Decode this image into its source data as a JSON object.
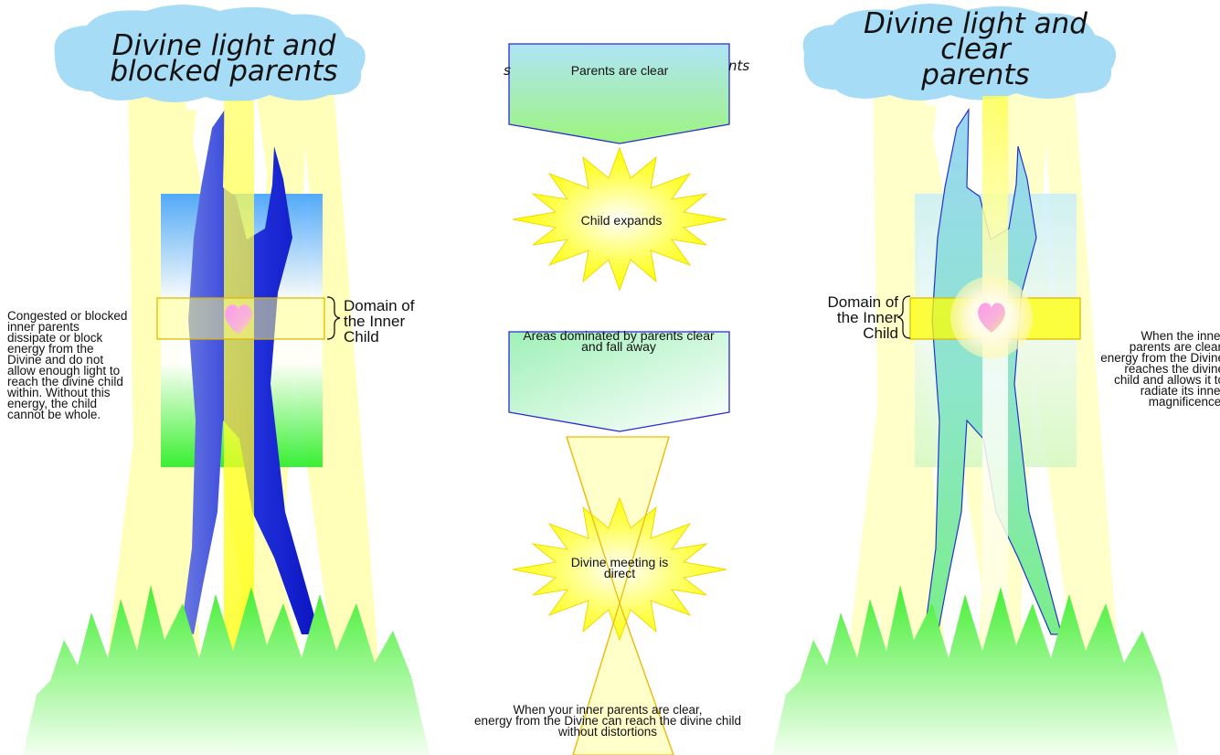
{
  "titles": {
    "left": [
      "Divine light and",
      "blocked parents"
    ],
    "right": [
      "Divine light and clear",
      "parents"
    ]
  },
  "partial_heading": {
    "left_fragment": "s",
    "right_fragment": "nts"
  },
  "domain_label": [
    "Domain of",
    "the Inner",
    "Child"
  ],
  "left_text": [
    "Congested or blocked",
    "inner parents",
    "dissipate or block",
    "energy from the",
    "Divine and do not",
    "allow enough light to",
    "reach the divine child",
    "within. Without this",
    "energy, the child",
    "cannot be whole."
  ],
  "right_text": [
    "When the inner",
    "parents are clear,",
    "energy from the Divine",
    "reaches the divine",
    "child and allows it to",
    "radiate its inner",
    "magnificence."
  ],
  "flow": {
    "step1": "Parents are clear",
    "step2": "Child expands",
    "step3": [
      "Areas dominated by parents clear",
      "and fall away"
    ],
    "step4": [
      "Divine meeting is",
      "direct"
    ]
  },
  "bottom_text": [
    "When your inner parents are clear,",
    "energy from the Divine can reach the divine child",
    "without distortions"
  ],
  "colors": {
    "sky_blue": "#a6dcf5",
    "sun_yellow": "#ffff33",
    "grass_green": "#55ee44",
    "body_blue": "#1a1aff",
    "heart_pink": "#f08ce0"
  }
}
